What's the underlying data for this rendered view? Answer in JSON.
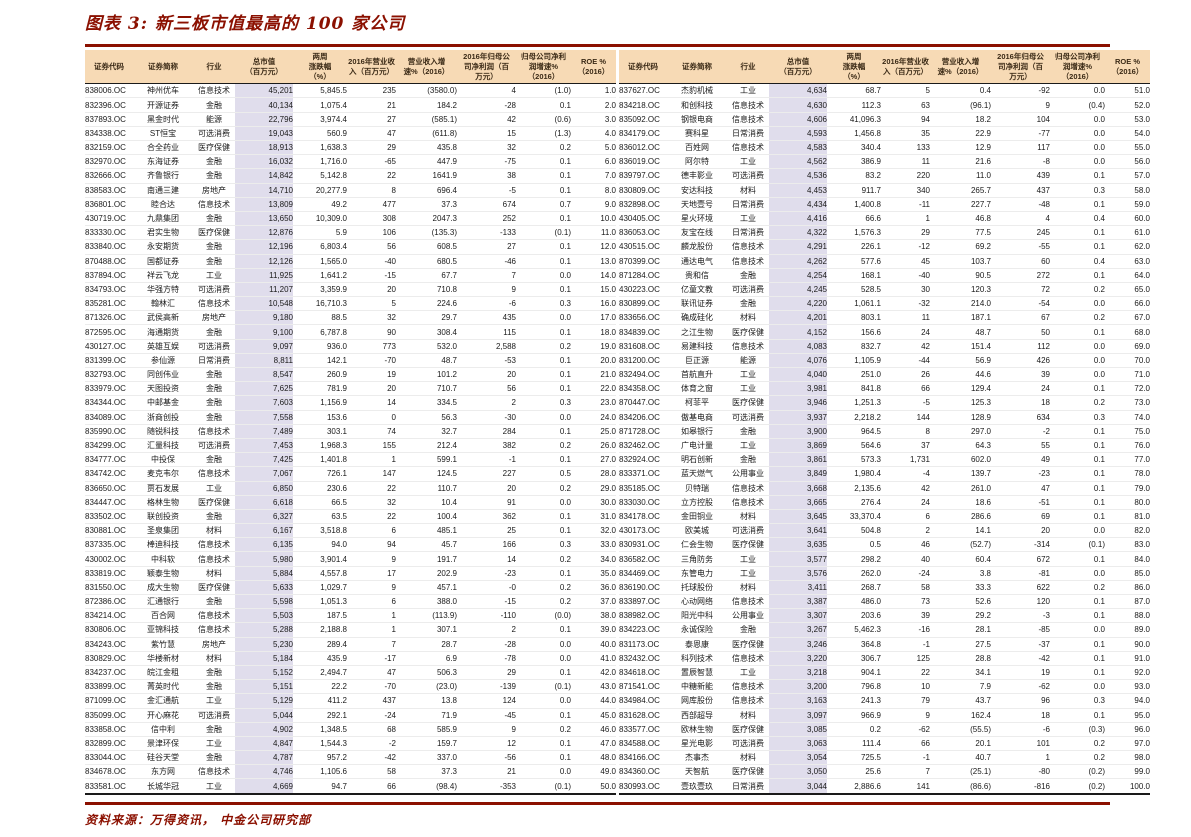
{
  "title": "图表 3: 新三板市值最高的 100 家公司",
  "source_note": "资料来源：万得资讯， 中金公司研究部",
  "colors": {
    "accent_red": "#8b1000",
    "header_bg": "#f7dab5",
    "market_cap_band": "#e0ddec",
    "negative_red": "#ff2400"
  },
  "table": {
    "columns": [
      "证券代码",
      "证券简称",
      "行业",
      "总市值\n（百万元）",
      "两周\n涨跌幅\n（%）",
      "2016年营业收\n入（百万元）",
      "营业收入增\n速%（2016）",
      "2016年归母公\n司净利润（百\n万元）",
      "归母公司净利\n润增速%\n（2016）",
      "ROE %\n（2016）"
    ],
    "column_keys": [
      "ticker",
      "short-name",
      "industry",
      "market-cap",
      "two-week-change",
      "revenue-2016",
      "revenue-growth-2016",
      "net-profit-2016",
      "net-profit-growth-2016",
      "roe-2016"
    ],
    "rows_left": [
      [
        "838006.OC",
        "神州优车",
        "信息技术",
        "45,201",
        "5,845.5",
        "235",
        "(3580.0)",
        "4",
        "(1.0)",
        "1.0"
      ],
      [
        "832396.OC",
        "开源证券",
        "金融",
        "40,134",
        "1,075.4",
        "21",
        "184.2",
        "-28",
        "0.1",
        "2.0"
      ],
      [
        "837893.OC",
        "黑金时代",
        "能源",
        "22,796",
        "3,974.4",
        "27",
        "(585.1)",
        "42",
        "(0.6)",
        "3.0"
      ],
      [
        "834338.OC",
        "ST恒宝",
        "可选消费",
        "19,043",
        "560.9",
        "47",
        "(611.8)",
        "15",
        "(1.3)",
        "4.0"
      ],
      [
        "832159.OC",
        "合全药业",
        "医疗保健",
        "18,913",
        "1,638.3",
        "29",
        "435.8",
        "32",
        "0.2",
        "5.0"
      ],
      [
        "832970.OC",
        "东海证券",
        "金融",
        "16,032",
        "1,716.0",
        "-65",
        "447.9",
        "-75",
        "0.1",
        "6.0"
      ],
      [
        "832666.OC",
        "齐鲁银行",
        "金融",
        "14,842",
        "5,142.8",
        "22",
        "1641.9",
        "38",
        "0.1",
        "7.0"
      ],
      [
        "838583.OC",
        "南通三建",
        "房地产",
        "14,710",
        "20,277.9",
        "8",
        "696.4",
        "-5",
        "0.1",
        "8.0"
      ],
      [
        "836801.OC",
        "睦合达",
        "信息技术",
        "13,809",
        "49.2",
        "477",
        "37.3",
        "674",
        "0.7",
        "9.0"
      ],
      [
        "430719.OC",
        "九鼎集团",
        "金融",
        "13,650",
        "10,309.0",
        "308",
        "2047.3",
        "252",
        "0.1",
        "10.0"
      ],
      [
        "833330.OC",
        "君实生物",
        "医疗保健",
        "12,876",
        "5.9",
        "106",
        "(135.3)",
        "-133",
        "(0.1)",
        "11.0"
      ],
      [
        "833840.OC",
        "永安期货",
        "金融",
        "12,196",
        "6,803.4",
        "56",
        "608.5",
        "27",
        "0.1",
        "12.0"
      ],
      [
        "870488.OC",
        "国都证券",
        "金融",
        "12,126",
        "1,565.0",
        "-40",
        "680.5",
        "-46",
        "0.1",
        "13.0"
      ],
      [
        "837894.OC",
        "祥云飞龙",
        "工业",
        "11,925",
        "1,641.2",
        "-15",
        "67.7",
        "7",
        "0.0",
        "14.0"
      ],
      [
        "834793.OC",
        "华强方特",
        "可选消费",
        "11,207",
        "3,359.9",
        "20",
        "710.8",
        "9",
        "0.1",
        "15.0"
      ],
      [
        "835281.OC",
        "翰林汇",
        "信息技术",
        "10,548",
        "16,710.3",
        "5",
        "224.6",
        "-6",
        "0.3",
        "16.0"
      ],
      [
        "871326.OC",
        "武侯高新",
        "房地产",
        "9,180",
        "88.5",
        "32",
        "29.7",
        "435",
        "0.0",
        "17.0"
      ],
      [
        "872595.OC",
        "海通期货",
        "金融",
        "9,100",
        "6,787.8",
        "90",
        "308.4",
        "115",
        "0.1",
        "18.0"
      ],
      [
        "430127.OC",
        "英雄互娱",
        "可选消费",
        "9,097",
        "936.0",
        "773",
        "532.0",
        "2,588",
        "0.2",
        "19.0"
      ],
      [
        "831399.OC",
        "参仙源",
        "日常消费",
        "8,811",
        "142.1",
        "-70",
        "48.7",
        "-53",
        "0.1",
        "20.0"
      ],
      [
        "832793.OC",
        "同创伟业",
        "金融",
        "8,547",
        "260.9",
        "19",
        "101.2",
        "20",
        "0.1",
        "21.0"
      ],
      [
        "833979.OC",
        "天图投资",
        "金融",
        "7,625",
        "781.9",
        "20",
        "710.7",
        "56",
        "0.1",
        "22.0"
      ],
      [
        "834344.OC",
        "中邮基金",
        "金融",
        "7,603",
        "1,156.9",
        "14",
        "334.5",
        "2",
        "0.3",
        "23.0"
      ],
      [
        "834089.OC",
        "浙商创投",
        "金融",
        "7,558",
        "153.6",
        "0",
        "56.3",
        "-30",
        "0.0",
        "24.0"
      ],
      [
        "835990.OC",
        "随锐科技",
        "信息技术",
        "7,489",
        "303.1",
        "74",
        "32.7",
        "284",
        "0.1",
        "25.0"
      ],
      [
        "834299.OC",
        "汇量科技",
        "可选消费",
        "7,453",
        "1,968.3",
        "155",
        "212.4",
        "382",
        "0.2",
        "26.0"
      ],
      [
        "834777.OC",
        "中投保",
        "金融",
        "7,425",
        "1,401.8",
        "1",
        "599.1",
        "-1",
        "0.1",
        "27.0"
      ],
      [
        "834742.OC",
        "麦克韦尔",
        "信息技术",
        "7,067",
        "726.1",
        "147",
        "124.5",
        "227",
        "0.5",
        "28.0"
      ],
      [
        "836650.OC",
        "贾石发展",
        "工业",
        "6,850",
        "230.6",
        "22",
        "110.7",
        "20",
        "0.2",
        "29.0"
      ],
      [
        "834447.OC",
        "格林生物",
        "医疗保健",
        "6,618",
        "66.5",
        "32",
        "10.4",
        "91",
        "0.0",
        "30.0"
      ],
      [
        "833502.OC",
        "联创投资",
        "金融",
        "6,327",
        "63.5",
        "22",
        "100.4",
        "362",
        "0.1",
        "31.0"
      ],
      [
        "830881.OC",
        "圣泉集团",
        "材料",
        "6,167",
        "3,518.8",
        "6",
        "485.1",
        "25",
        "0.1",
        "32.0"
      ],
      [
        "837335.OC",
        "棒迪科技",
        "信息技术",
        "6,135",
        "94.0",
        "94",
        "45.7",
        "166",
        "0.3",
        "33.0"
      ],
      [
        "430002.OC",
        "中科软",
        "信息技术",
        "5,980",
        "3,901.4",
        "9",
        "191.7",
        "14",
        "0.2",
        "34.0"
      ],
      [
        "833819.OC",
        "颖泰生物",
        "材料",
        "5,884",
        "4,557.8",
        "17",
        "202.9",
        "-23",
        "0.1",
        "35.0"
      ],
      [
        "831550.OC",
        "成大生物",
        "医疗保健",
        "5,633",
        "1,029.7",
        "9",
        "457.1",
        "-0",
        "0.2",
        "36.0"
      ],
      [
        "872386.OC",
        "汇通银行",
        "金融",
        "5,598",
        "1,051.3",
        "6",
        "388.0",
        "-15",
        "0.2",
        "37.0"
      ],
      [
        "834214.OC",
        "百合网",
        "信息技术",
        "5,503",
        "187.5",
        "1",
        "(113.9)",
        "-110",
        "(0.0)",
        "38.0"
      ],
      [
        "830806.OC",
        "亚锦科技",
        "信息技术",
        "5,288",
        "2,188.8",
        "1",
        "307.1",
        "2",
        "0.1",
        "39.0"
      ],
      [
        "834243.OC",
        "紫竹慧",
        "房地产",
        "5,230",
        "289.4",
        "7",
        "28.7",
        "-28",
        "0.0",
        "40.0"
      ],
      [
        "830829.OC",
        "华楼新材",
        "材料",
        "5,184",
        "435.9",
        "-17",
        "6.9",
        "-78",
        "0.0",
        "41.0"
      ],
      [
        "834237.OC",
        "皖江金租",
        "金融",
        "5,152",
        "2,494.7",
        "47",
        "506.3",
        "29",
        "0.1",
        "42.0"
      ],
      [
        "833899.OC",
        "菁英时代",
        "金融",
        "5,151",
        "22.2",
        "-70",
        "(23.0)",
        "-139",
        "(0.1)",
        "43.0"
      ],
      [
        "871099.OC",
        "金汇通航",
        "工业",
        "5,129",
        "411.2",
        "437",
        "13.8",
        "124",
        "0.0",
        "44.0"
      ],
      [
        "835099.OC",
        "开心麻花",
        "可选消费",
        "5,044",
        "292.1",
        "-24",
        "71.9",
        "-45",
        "0.1",
        "45.0"
      ],
      [
        "833858.OC",
        "信中利",
        "金融",
        "4,902",
        "1,348.5",
        "68",
        "585.9",
        "9",
        "0.2",
        "46.0"
      ],
      [
        "832899.OC",
        "景津环保",
        "工业",
        "4,847",
        "1,544.3",
        "-2",
        "159.7",
        "12",
        "0.1",
        "47.0"
      ],
      [
        "833044.OC",
        "硅谷天堂",
        "金融",
        "4,787",
        "957.2",
        "-42",
        "337.0",
        "-56",
        "0.1",
        "48.0"
      ],
      [
        "834678.OC",
        "东方网",
        "信息技术",
        "4,746",
        "1,105.6",
        "58",
        "37.3",
        "21",
        "0.0",
        "49.0"
      ],
      [
        "833581.OC",
        "长城华冠",
        "工业",
        "4,669",
        "94.7",
        "66",
        "(98.4)",
        "-353",
        "(0.1)",
        "50.0"
      ]
    ],
    "rows_right": [
      [
        "837627.OC",
        "杰豹机械",
        "工业",
        "4,634",
        "68.7",
        "5",
        "0.4",
        "-92",
        "0.0",
        "51.0"
      ],
      [
        "834218.OC",
        "和创科技",
        "信息技术",
        "4,630",
        "112.3",
        "63",
        "(96.1)",
        "9",
        "(0.4)",
        "52.0"
      ],
      [
        "835092.OC",
        "钢银电商",
        "信息技术",
        "4,606",
        "41,096.3",
        "94",
        "18.2",
        "104",
        "0.0",
        "53.0"
      ],
      [
        "834179.OC",
        "赛科星",
        "日常消费",
        "4,593",
        "1,456.8",
        "35",
        "22.9",
        "-77",
        "0.0",
        "54.0"
      ],
      [
        "836012.OC",
        "百姓网",
        "信息技术",
        "4,583",
        "340.4",
        "133",
        "12.9",
        "117",
        "0.0",
        "55.0"
      ],
      [
        "836019.OC",
        "阿尔特",
        "工业",
        "4,562",
        "386.9",
        "11",
        "21.6",
        "-8",
        "0.0",
        "56.0"
      ],
      [
        "839797.OC",
        "德丰影业",
        "可选消费",
        "4,536",
        "83.2",
        "220",
        "11.0",
        "439",
        "0.1",
        "57.0"
      ],
      [
        "830809.OC",
        "安达科技",
        "材料",
        "4,453",
        "911.7",
        "340",
        "265.7",
        "437",
        "0.3",
        "58.0"
      ],
      [
        "832898.OC",
        "天地壹号",
        "日常消费",
        "4,434",
        "1,400.8",
        "-11",
        "227.7",
        "-48",
        "0.1",
        "59.0"
      ],
      [
        "430405.OC",
        "星火环境",
        "工业",
        "4,416",
        "66.6",
        "1",
        "46.8",
        "4",
        "0.4",
        "60.0"
      ],
      [
        "836053.OC",
        "友宝在线",
        "日常消费",
        "4,322",
        "1,576.3",
        "29",
        "77.5",
        "245",
        "0.1",
        "61.0"
      ],
      [
        "430515.OC",
        "麟龙股份",
        "信息技术",
        "4,291",
        "226.1",
        "-12",
        "69.2",
        "-55",
        "0.1",
        "62.0"
      ],
      [
        "870399.OC",
        "通达电气",
        "信息技术",
        "4,262",
        "577.6",
        "45",
        "103.7",
        "60",
        "0.4",
        "63.0"
      ],
      [
        "871284.OC",
        "贵和信",
        "金融",
        "4,254",
        "168.1",
        "-40",
        "90.5",
        "272",
        "0.1",
        "64.0"
      ],
      [
        "430223.OC",
        "亿童文教",
        "可选消费",
        "4,245",
        "528.5",
        "30",
        "120.3",
        "72",
        "0.2",
        "65.0"
      ],
      [
        "830899.OC",
        "联讯证券",
        "金融",
        "4,220",
        "1,061.1",
        "-32",
        "214.0",
        "-54",
        "0.0",
        "66.0"
      ],
      [
        "833656.OC",
        "确成硅化",
        "材料",
        "4,201",
        "803.1",
        "11",
        "187.1",
        "67",
        "0.2",
        "67.0"
      ],
      [
        "834839.OC",
        "之江生物",
        "医疗保健",
        "4,152",
        "156.6",
        "24",
        "48.7",
        "50",
        "0.1",
        "68.0"
      ],
      [
        "831608.OC",
        "易建科技",
        "信息技术",
        "4,083",
        "832.7",
        "42",
        "151.4",
        "112",
        "0.0",
        "69.0"
      ],
      [
        "831200.OC",
        "巨正源",
        "能源",
        "4,076",
        "1,105.9",
        "-44",
        "56.9",
        "426",
        "0.0",
        "70.0"
      ],
      [
        "832494.OC",
        "首航直升",
        "工业",
        "4,040",
        "251.0",
        "26",
        "44.6",
        "39",
        "0.0",
        "71.0"
      ],
      [
        "834358.OC",
        "体育之窗",
        "工业",
        "3,981",
        "841.8",
        "66",
        "129.4",
        "24",
        "0.1",
        "72.0"
      ],
      [
        "870447.OC",
        "柯菲平",
        "医疗保健",
        "3,946",
        "1,251.3",
        "-5",
        "125.3",
        "18",
        "0.2",
        "73.0"
      ],
      [
        "834206.OC",
        "傲基电商",
        "可选消费",
        "3,937",
        "2,218.2",
        "144",
        "128.9",
        "634",
        "0.3",
        "74.0"
      ],
      [
        "871728.OC",
        "如皋银行",
        "金融",
        "3,900",
        "964.5",
        "8",
        "297.0",
        "-2",
        "0.1",
        "75.0"
      ],
      [
        "832462.OC",
        "广电计量",
        "工业",
        "3,869",
        "564.6",
        "37",
        "64.3",
        "55",
        "0.1",
        "76.0"
      ],
      [
        "832924.OC",
        "明石创新",
        "金融",
        "3,861",
        "573.3",
        "1,731",
        "602.0",
        "49",
        "0.1",
        "77.0"
      ],
      [
        "833371.OC",
        "蓝天燃气",
        "公用事业",
        "3,849",
        "1,980.4",
        "-4",
        "139.7",
        "-23",
        "0.1",
        "78.0"
      ],
      [
        "835185.OC",
        "贝特瑞",
        "信息技术",
        "3,668",
        "2,135.6",
        "42",
        "261.0",
        "47",
        "0.1",
        "79.0"
      ],
      [
        "833030.OC",
        "立方控股",
        "信息技术",
        "3,665",
        "276.4",
        "24",
        "18.6",
        "-51",
        "0.1",
        "80.0"
      ],
      [
        "834178.OC",
        "金田铜业",
        "材料",
        "3,645",
        "33,370.4",
        "6",
        "286.6",
        "69",
        "0.1",
        "81.0"
      ],
      [
        "430173.OC",
        "欧美城",
        "可选消费",
        "3,641",
        "504.8",
        "2",
        "14.1",
        "20",
        "0.0",
        "82.0"
      ],
      [
        "830931.OC",
        "仁会生物",
        "医疗保健",
        "3,635",
        "0.5",
        "46",
        "(52.7)",
        "-314",
        "(0.1)",
        "83.0"
      ],
      [
        "836582.OC",
        "三角防务",
        "工业",
        "3,577",
        "298.2",
        "40",
        "60.4",
        "672",
        "0.1",
        "84.0"
      ],
      [
        "834469.OC",
        "东管电力",
        "工业",
        "3,576",
        "262.0",
        "-24",
        "3.8",
        "-81",
        "0.0",
        "85.0"
      ],
      [
        "836190.OC",
        "托球股份",
        "材料",
        "3,411",
        "268.7",
        "58",
        "33.3",
        "622",
        "0.2",
        "86.0"
      ],
      [
        "833897.OC",
        "心动网络",
        "信息技术",
        "3,387",
        "486.0",
        "73",
        "52.6",
        "120",
        "0.1",
        "87.0"
      ],
      [
        "838982.OC",
        "阳光中科",
        "公用事业",
        "3,307",
        "203.6",
        "39",
        "29.2",
        "-3",
        "0.1",
        "88.0"
      ],
      [
        "834223.OC",
        "永诚保险",
        "金融",
        "3,267",
        "5,462.3",
        "-16",
        "28.1",
        "-85",
        "0.0",
        "89.0"
      ],
      [
        "831173.OC",
        "泰恩康",
        "医疗保健",
        "3,246",
        "364.8",
        "-1",
        "27.5",
        "-37",
        "0.1",
        "90.0"
      ],
      [
        "832432.OC",
        "科列技术",
        "信息技术",
        "3,220",
        "306.7",
        "125",
        "28.8",
        "-42",
        "0.1",
        "91.0"
      ],
      [
        "834618.OC",
        "置辰智慧",
        "工业",
        "3,218",
        "904.1",
        "22",
        "34.1",
        "19",
        "0.1",
        "92.0"
      ],
      [
        "871541.OC",
        "中糖新能",
        "信息技术",
        "3,200",
        "796.8",
        "10",
        "7.9",
        "-62",
        "0.0",
        "93.0"
      ],
      [
        "834984.OC",
        "网库股份",
        "信息技术",
        "3,163",
        "241.3",
        "79",
        "43.7",
        "96",
        "0.3",
        "94.0"
      ],
      [
        "831628.OC",
        "西部超导",
        "材料",
        "3,097",
        "966.9",
        "9",
        "162.4",
        "18",
        "0.1",
        "95.0"
      ],
      [
        "833577.OC",
        "欧林生物",
        "医疗保健",
        "3,085",
        "0.2",
        "-62",
        "(55.5)",
        "-6",
        "(0.3)",
        "96.0"
      ],
      [
        "834588.OC",
        "星光电影",
        "可选消费",
        "3,063",
        "111.4",
        "66",
        "20.1",
        "101",
        "0.2",
        "97.0"
      ],
      [
        "834166.OC",
        "杰事杰",
        "材料",
        "3,054",
        "725.5",
        "-1",
        "40.7",
        "1",
        "0.2",
        "98.0"
      ],
      [
        "834360.OC",
        "天智航",
        "医疗保健",
        "3,050",
        "25.6",
        "7",
        "(25.1)",
        "-80",
        "(0.2)",
        "99.0"
      ],
      [
        "830993.OC",
        "壹玖壹玖",
        "日常消费",
        "3,044",
        "2,886.6",
        "141",
        "(86.6)",
        "-816",
        "(0.2)",
        "100.0"
      ]
    ]
  }
}
